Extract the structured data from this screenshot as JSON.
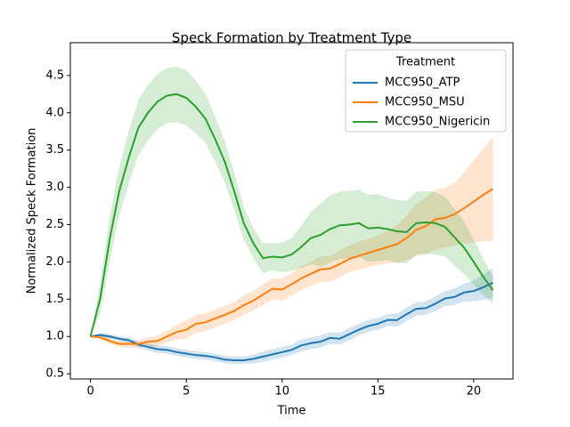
{
  "chart_data": {
    "type": "line",
    "title": "Speck Formation by Treatment Type",
    "x_label": "Time",
    "y_label": "Normalized Speck Formation",
    "legend_title": "Treatment",
    "legend_loc": "upper right",
    "xlim": [
      -1.05,
      22.05
    ],
    "ylim": [
      0.43,
      4.94
    ],
    "xticks": [
      0,
      5,
      10,
      15,
      20
    ],
    "yticks": [
      0.5,
      {
        "value": 1,
        "label": "1.0"
      },
      1.5,
      {
        "value": 2,
        "label": "2.0"
      },
      2.5,
      {
        "value": 3,
        "label": "3.0"
      },
      3.5,
      {
        "value": 4,
        "label": "4.0"
      },
      4.5
    ],
    "x": [
      0,
      0.5,
      1,
      1.5,
      2,
      2.5,
      3,
      3.5,
      4,
      4.5,
      5,
      5.5,
      6,
      6.5,
      7,
      7.5,
      8,
      8.5,
      9,
      9.5,
      10,
      10.5,
      11,
      11.5,
      12,
      12.5,
      13,
      13.5,
      14,
      14.5,
      15,
      15.5,
      16,
      16.5,
      17,
      17.5,
      18,
      18.5,
      19,
      19.5,
      20,
      20.5,
      21
    ],
    "series": [
      {
        "name": "MCC950_ATP",
        "color": "#1f77b4",
        "values": [
          1.0,
          1.02,
          1.0,
          0.97,
          0.95,
          0.89,
          0.86,
          0.83,
          0.82,
          0.79,
          0.77,
          0.75,
          0.74,
          0.72,
          0.69,
          0.68,
          0.68,
          0.7,
          0.73,
          0.76,
          0.79,
          0.82,
          0.88,
          0.91,
          0.93,
          0.98,
          0.97,
          1.03,
          1.09,
          1.14,
          1.17,
          1.22,
          1.22,
          1.3,
          1.37,
          1.38,
          1.44,
          1.51,
          1.53,
          1.59,
          1.61,
          1.66,
          1.72
        ],
        "lower": [
          1.0,
          0.99,
          0.97,
          0.94,
          0.91,
          0.85,
          0.81,
          0.78,
          0.77,
          0.74,
          0.72,
          0.7,
          0.69,
          0.67,
          0.64,
          0.63,
          0.63,
          0.64,
          0.66,
          0.69,
          0.72,
          0.75,
          0.8,
          0.83,
          0.85,
          0.9,
          0.89,
          0.95,
          1.01,
          1.06,
          1.09,
          1.14,
          1.13,
          1.21,
          1.28,
          1.29,
          1.34,
          1.41,
          1.42,
          1.47,
          1.47,
          1.49,
          1.52
        ],
        "upper": [
          1.0,
          1.05,
          1.03,
          1.0,
          0.99,
          0.93,
          0.91,
          0.88,
          0.87,
          0.84,
          0.82,
          0.8,
          0.79,
          0.77,
          0.74,
          0.73,
          0.73,
          0.76,
          0.8,
          0.83,
          0.86,
          0.89,
          0.96,
          0.99,
          1.01,
          1.06,
          1.05,
          1.11,
          1.17,
          1.22,
          1.25,
          1.3,
          1.31,
          1.39,
          1.46,
          1.47,
          1.54,
          1.61,
          1.64,
          1.71,
          1.75,
          1.83,
          1.92
        ]
      },
      {
        "name": "MCC950_MSU",
        "color": "#ff7f0e",
        "values": [
          1.0,
          0.99,
          0.94,
          0.9,
          0.9,
          0.9,
          0.93,
          0.94,
          1.0,
          1.06,
          1.09,
          1.17,
          1.19,
          1.24,
          1.29,
          1.34,
          1.42,
          1.48,
          1.56,
          1.64,
          1.63,
          1.7,
          1.78,
          1.84,
          1.9,
          1.91,
          1.97,
          2.04,
          2.08,
          2.12,
          2.16,
          2.2,
          2.24,
          2.32,
          2.43,
          2.48,
          2.57,
          2.59,
          2.64,
          2.72,
          2.81,
          2.9,
          2.98
        ],
        "lower": [
          1.0,
          0.96,
          0.9,
          0.86,
          0.85,
          0.85,
          0.87,
          0.87,
          0.92,
          0.96,
          0.97,
          1.05,
          1.07,
          1.12,
          1.17,
          1.22,
          1.29,
          1.35,
          1.42,
          1.5,
          1.48,
          1.55,
          1.62,
          1.68,
          1.73,
          1.74,
          1.79,
          1.86,
          1.89,
          1.93,
          1.96,
          1.98,
          1.99,
          2.02,
          2.08,
          2.1,
          2.17,
          2.19,
          2.22,
          2.24,
          2.26,
          2.28,
          2.28
        ],
        "upper": [
          1.0,
          1.02,
          0.98,
          0.94,
          0.95,
          0.95,
          0.99,
          1.01,
          1.08,
          1.16,
          1.21,
          1.29,
          1.31,
          1.36,
          1.41,
          1.46,
          1.55,
          1.61,
          1.7,
          1.78,
          1.78,
          1.85,
          1.94,
          2.0,
          2.07,
          2.08,
          2.15,
          2.22,
          2.27,
          2.31,
          2.36,
          2.42,
          2.49,
          2.62,
          2.78,
          2.86,
          2.97,
          2.99,
          3.06,
          3.2,
          3.36,
          3.52,
          3.68
        ]
      },
      {
        "name": "MCC950_Nigericin",
        "color": "#2ca02c",
        "values": [
          1.0,
          1.5,
          2.3,
          2.95,
          3.4,
          3.8,
          4.0,
          4.15,
          4.23,
          4.25,
          4.2,
          4.08,
          3.92,
          3.65,
          3.35,
          2.95,
          2.52,
          2.25,
          2.05,
          2.07,
          2.06,
          2.1,
          2.2,
          2.32,
          2.36,
          2.44,
          2.49,
          2.5,
          2.52,
          2.45,
          2.46,
          2.44,
          2.41,
          2.4,
          2.52,
          2.53,
          2.52,
          2.47,
          2.33,
          2.19,
          2.0,
          1.8,
          1.62
        ],
        "lower": [
          1.0,
          1.3,
          2.0,
          2.62,
          3.05,
          3.43,
          3.63,
          3.78,
          3.86,
          3.88,
          3.83,
          3.73,
          3.59,
          3.35,
          3.07,
          2.7,
          2.3,
          2.05,
          1.85,
          1.89,
          1.86,
          1.88,
          1.92,
          1.97,
          1.94,
          1.99,
          2.04,
          2.05,
          2.07,
          2.0,
          2.01,
          2.02,
          1.99,
          1.98,
          2.1,
          2.11,
          2.1,
          2.07,
          1.95,
          1.84,
          1.7,
          1.55,
          1.44
        ],
        "upper": [
          1.0,
          1.7,
          2.6,
          3.28,
          3.75,
          4.17,
          4.37,
          4.52,
          4.6,
          4.62,
          4.57,
          4.43,
          4.25,
          3.95,
          3.63,
          3.2,
          2.74,
          2.45,
          2.25,
          2.25,
          2.26,
          2.32,
          2.48,
          2.67,
          2.78,
          2.89,
          2.94,
          2.95,
          2.97,
          2.9,
          2.91,
          2.86,
          2.83,
          2.82,
          2.94,
          2.95,
          2.94,
          2.87,
          2.71,
          2.54,
          2.3,
          2.05,
          1.8
        ]
      }
    ]
  }
}
